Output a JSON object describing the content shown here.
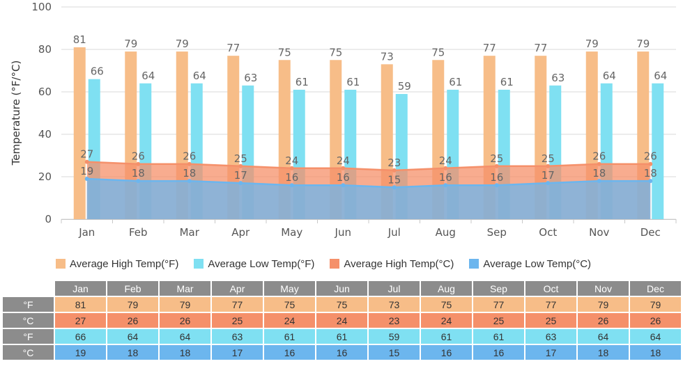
{
  "chart_data": {
    "type": "bar",
    "ylabel": "Temperature (°F/°C)",
    "ylim": [
      0,
      100
    ],
    "yticks": [
      0,
      20,
      40,
      60,
      80,
      100
    ],
    "grid": true,
    "categories": [
      "Jan",
      "Feb",
      "Mar",
      "Apr",
      "May",
      "Jun",
      "Jul",
      "Aug",
      "Sep",
      "Oct",
      "Nov",
      "Dec"
    ],
    "series": [
      {
        "name": "Average High Temp(°F)",
        "kind": "bar",
        "color": "#f7bd88",
        "values": [
          81,
          79,
          79,
          77,
          75,
          75,
          73,
          75,
          77,
          77,
          79,
          79
        ]
      },
      {
        "name": "Average Low Temp(°F)",
        "kind": "bar",
        "color": "#7fe0f2",
        "values": [
          66,
          64,
          64,
          63,
          61,
          61,
          59,
          61,
          61,
          63,
          64,
          64
        ]
      },
      {
        "name": "Average High Temp(°C)",
        "kind": "area",
        "color": "#f5906a",
        "values": [
          27,
          26,
          26,
          25,
          24,
          24,
          23,
          24,
          25,
          25,
          26,
          26
        ]
      },
      {
        "name": "Average Low Temp(°C)",
        "kind": "area",
        "color": "#6cb6ee",
        "values": [
          19,
          18,
          18,
          17,
          16,
          16,
          15,
          16,
          16,
          17,
          18,
          18
        ]
      }
    ],
    "legend_position": "bottom"
  },
  "table": {
    "months": [
      "Jan",
      "Feb",
      "Mar",
      "Apr",
      "May",
      "Jun",
      "Jul",
      "Aug",
      "Sep",
      "Oct",
      "Nov",
      "Dec"
    ],
    "rows": [
      {
        "label": "°F",
        "style": "r-hf",
        "values": [
          81,
          79,
          79,
          77,
          75,
          75,
          73,
          75,
          77,
          77,
          79,
          79
        ]
      },
      {
        "label": "°C",
        "style": "r-hc",
        "values": [
          27,
          26,
          26,
          25,
          24,
          24,
          23,
          24,
          25,
          25,
          26,
          26
        ]
      },
      {
        "label": "°F",
        "style": "r-lf",
        "values": [
          66,
          64,
          64,
          63,
          61,
          61,
          59,
          61,
          61,
          63,
          64,
          64
        ]
      },
      {
        "label": "°C",
        "style": "r-lc",
        "values": [
          19,
          18,
          18,
          17,
          16,
          16,
          15,
          16,
          16,
          17,
          18,
          18
        ]
      }
    ]
  }
}
